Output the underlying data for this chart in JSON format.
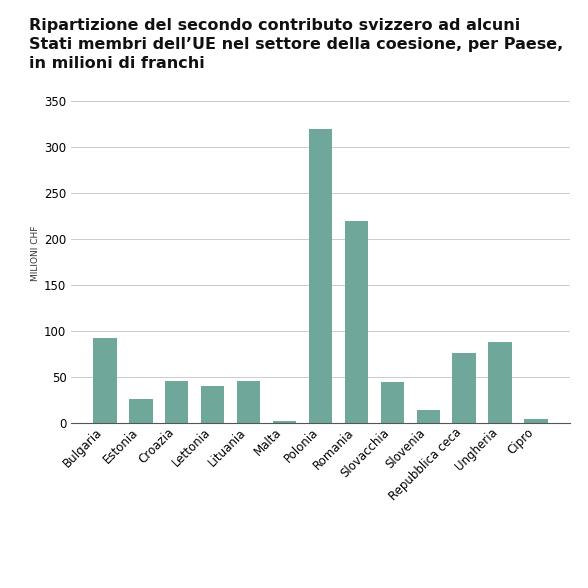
{
  "title_line1": "Ripartizione del secondo contributo svizzero ad alcuni",
  "title_line2": "Stati membri dell’UE nel settore della coesione, per Paese,",
  "title_line3": "in milioni di franchi",
  "categories": [
    "Bulgaria",
    "Estonia",
    "Croazia",
    "Lettonia",
    "Lituania",
    "Malta",
    "Polonia",
    "Romania",
    "Slovacchia",
    "Slovenia",
    "Repubblica ceca",
    "Ungheria",
    "Cipro"
  ],
  "values": [
    93,
    26,
    46,
    40,
    46,
    3,
    319,
    220,
    45,
    15,
    76,
    88,
    5
  ],
  "bar_color": "#6fa89b",
  "ylabel": "MILIONI CHF",
  "ylim": [
    0,
    370
  ],
  "yticks": [
    0,
    50,
    100,
    150,
    200,
    250,
    300,
    350
  ],
  "bg_color": "#ffffff",
  "title_fontsize": 11.5,
  "ylabel_fontsize": 6.5,
  "tick_fontsize": 8.5,
  "grid_color": "#cccccc",
  "spine_color": "#555555"
}
